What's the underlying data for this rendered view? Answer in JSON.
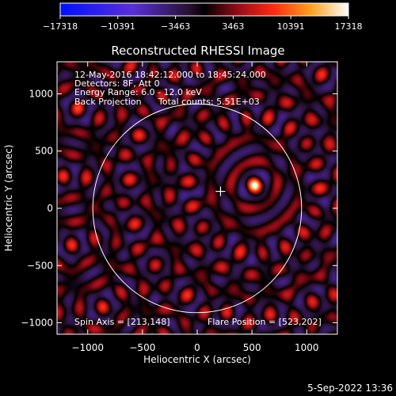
{
  "chart_data": {
    "type": "heatmap",
    "title": "Reconstructed RHESSI Image",
    "xlabel": "Heliocentric X (arcsec)",
    "ylabel": "Heliocentric Y (arcsec)",
    "xlim": [
      -1280,
      1280
    ],
    "ylim": [
      -1100,
      1280
    ],
    "xticks": [
      -1000,
      -500,
      0,
      500,
      1000
    ],
    "yticks": [
      -1000,
      -500,
      0,
      500,
      1000
    ],
    "colorbar": {
      "ticks": [
        -17318,
        -10391,
        -3463,
        3463,
        10391,
        17318
      ],
      "range": [
        -17318,
        17318
      ],
      "colors": [
        "#0010ff",
        "#6a2bd0",
        "#2a0a30",
        "#000000",
        "#b01020",
        "#ff3010",
        "#ffa020",
        "#ffffff"
      ]
    },
    "annotations": {
      "line1": "12-May-2016 18:42:12.000 to 18:45:24.000",
      "line2": "Detectors: 8F, Att 0",
      "line3": "Energy Range: 6.0 - 12.0 keV",
      "line4a": "Back Projection",
      "line4b": "Total counts: 5.51E+03",
      "spin_axis": "Spin Axis = [213,148]",
      "flare_position": "Flare Position = [523,202]"
    },
    "flare_position": [
      523,
      202
    ],
    "spin_axis": [
      213,
      148
    ],
    "solar_limb_radius": 953,
    "sun_center": [
      0,
      0
    ],
    "footer": "5-Sep-2022 13:36"
  }
}
